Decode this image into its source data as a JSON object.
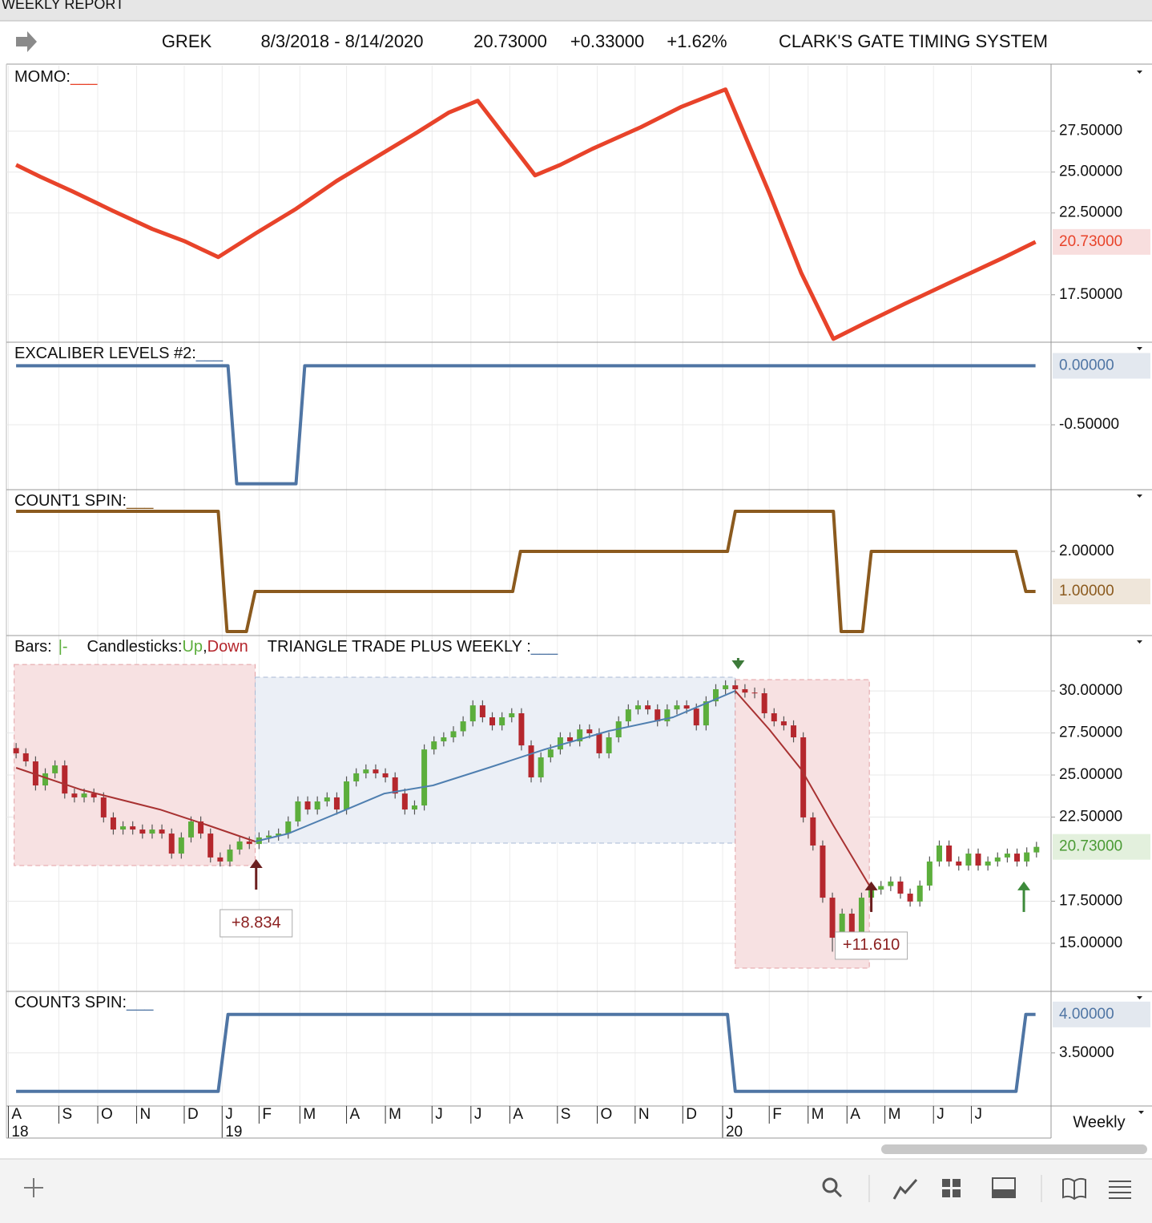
{
  "window_title": "WEEKLY REPORT",
  "header": {
    "symbol": "GREK",
    "range": "8/3/2018 - 8/14/2020",
    "last": "20.73000",
    "change": "+0.33000",
    "change_pct": "+1.62%",
    "system": "CLARK'S GATE TIMING SYSTEM"
  },
  "chart_data": [
    {
      "type": "line",
      "title": "MOMO:",
      "swatch": "___",
      "color": "#e8432a",
      "current_fill": "#f8dede",
      "xlim": [
        -1,
        106.5
      ],
      "ylim": [
        14.6,
        31.5
      ],
      "yticks": [
        {
          "value": 17.5,
          "label": "17.50000"
        },
        {
          "value": 22.5,
          "label": "22.50000"
        },
        {
          "value": 25,
          "label": "25.00000"
        },
        {
          "value": 27.5,
          "label": "27.50000"
        }
      ],
      "current": {
        "value": 20.73,
        "label": "20.73000"
      },
      "x": [
        0,
        2.5,
        5.8,
        9.9,
        14.0,
        17.3,
        20.8,
        24.7,
        28.8,
        33.0,
        37.1,
        41.2,
        44.5,
        47.5,
        53.4,
        56.0,
        59.3,
        64.3,
        68.4,
        71.7,
        73.0,
        77.5,
        80.8,
        84.1,
        87.4,
        91.5,
        96.4,
        101.4,
        104.9
      ],
      "values": [
        25.44,
        24.71,
        23.82,
        22.65,
        21.52,
        20.78,
        19.8,
        21.27,
        22.75,
        24.46,
        25.93,
        27.4,
        28.63,
        29.36,
        24.8,
        25.44,
        26.42,
        27.75,
        28.97,
        29.75,
        30.05,
        23.73,
        18.82,
        14.8,
        15.78,
        16.96,
        18.33,
        19.71,
        20.73
      ]
    },
    {
      "type": "line",
      "title": "EXCALIBER LEVELS #2:",
      "swatch": "___",
      "color": "#4f75a4",
      "current_fill": "#e3e8ef",
      "xlim": [
        -1,
        106.5
      ],
      "ylim": [
        -1.05,
        0.2
      ],
      "yticks": [
        {
          "value": -0.5,
          "label": "-0.50000"
        }
      ],
      "current": {
        "value": 0,
        "label": "0.00000"
      },
      "x": [
        0,
        21.8,
        22.7,
        28.8,
        29.7,
        104.9
      ],
      "values": [
        0,
        0,
        -1,
        -1,
        0,
        0
      ]
    },
    {
      "type": "line",
      "title": "COUNT1 SPIN:",
      "swatch": "___",
      "color": "#8b5a1e",
      "current_fill": "#efe6da",
      "xlim": [
        -1,
        106.5
      ],
      "ylim": [
        -0.1,
        3.54
      ],
      "yticks": [
        {
          "value": 2,
          "label": "2.00000"
        }
      ],
      "current": {
        "value": 1,
        "label": "1.00000"
      },
      "x": [
        0,
        20.8,
        21.7,
        23.7,
        24.6,
        51.1,
        51.9,
        73.2,
        74.0,
        84.1,
        84.9,
        87.1,
        88.0,
        102.9,
        103.9,
        104.9
      ],
      "values": [
        3,
        3,
        0,
        0,
        1,
        1,
        2,
        2,
        3,
        3,
        0,
        0,
        2,
        2,
        1,
        1
      ]
    },
    {
      "type": "candlestick",
      "xlim": [
        -1,
        106.5
      ],
      "ylim": [
        12.14,
        33.29
      ],
      "legend": {
        "bars": "Bars:",
        "bars_swatch": "|-",
        "candles": "Candlesticks:",
        "up": "Up",
        "sep": ",",
        "down": "Down",
        "study": "TRIANGLE TRADE PLUS WEEKLY :",
        "study_swatch": "___"
      },
      "up_color": "#5cae3c",
      "down_color": "#b5272d",
      "study_color": "#4f75a4",
      "current_fill": "#e3f0dd",
      "current_color": "#4a9a34",
      "yticks": [
        {
          "value": 15,
          "label": "15.00000"
        },
        {
          "value": 17.5,
          "label": "17.50000"
        },
        {
          "value": 22.5,
          "label": "22.50000"
        },
        {
          "value": 25,
          "label": "25.00000"
        },
        {
          "value": 27.5,
          "label": "27.50000"
        },
        {
          "value": 30,
          "label": "30.00000"
        }
      ],
      "current": {
        "value": 20.73,
        "label": "20.73000"
      },
      "zones": [
        {
          "x": [
            -0.2,
            24.6
          ],
          "y": [
            19.62,
            31.57
          ],
          "color": "#f7e1e2",
          "stroke": "#e3a0a4"
        },
        {
          "x": [
            24.6,
            74.0
          ],
          "y": [
            20.95,
            30.81
          ],
          "color": "#ebeff6",
          "stroke": "#a9b9d4"
        },
        {
          "x": [
            74.0,
            87.8
          ],
          "y": [
            13.52,
            30.67
          ],
          "color": "#f7e1e2",
          "stroke": "#e3a0a4"
        }
      ],
      "averages": [
        {
          "color": "#a83232",
          "x": [
            0,
            6.6,
            14.8,
            19.8,
            24.6
          ],
          "values": [
            25.43,
            24.14,
            22.95,
            22.0,
            21.05
          ]
        },
        {
          "color": "#4f7fb0",
          "x": [
            24.6,
            28.0,
            33.0,
            37.9,
            42.9,
            48.6,
            54.4,
            61.0,
            67.6,
            74.0
          ],
          "values": [
            21.05,
            21.52,
            22.71,
            23.9,
            24.38,
            25.43,
            26.52,
            27.62,
            28.43,
            30.0
          ]
        },
        {
          "color": "#a83232",
          "x": [
            74.0,
            77.5,
            80.8,
            84.1,
            87.8
          ],
          "values": [
            30.0,
            27.71,
            25.33,
            22.0,
            18.43
          ]
        }
      ],
      "annotations": [
        {
          "x": 24.7,
          "y": 20.0,
          "direction": "up",
          "color": "#6b1e1e",
          "label": "+8.834"
        },
        {
          "x": 88.0,
          "y": 18.67,
          "direction": "up",
          "color": "#6b1e1e",
          "label": "+11.610"
        },
        {
          "x": 103.7,
          "y": 18.67,
          "direction": "up",
          "color": "#3d8a3a"
        },
        {
          "x": 74.3,
          "y": 31.29,
          "direction": "down",
          "color": "#3d7a3a"
        }
      ],
      "ohlc": [
        [
          26.6,
          26.9,
          25.99,
          26.29
        ],
        [
          26.29,
          26.59,
          25.51,
          25.81
        ],
        [
          25.81,
          26.11,
          24.08,
          24.38
        ],
        [
          24.38,
          25.4,
          24.08,
          25.1
        ],
        [
          25.1,
          25.87,
          24.8,
          25.57
        ],
        [
          25.57,
          25.87,
          23.6,
          23.9
        ],
        [
          23.9,
          24.2,
          23.37,
          23.67
        ],
        [
          23.67,
          24.2,
          23.37,
          23.9
        ],
        [
          23.9,
          24.2,
          23.37,
          23.67
        ],
        [
          23.67,
          23.97,
          22.18,
          22.48
        ],
        [
          22.48,
          22.78,
          21.46,
          21.76
        ],
        [
          21.76,
          22.25,
          21.46,
          21.95
        ],
        [
          21.95,
          22.25,
          21.46,
          21.76
        ],
        [
          21.76,
          22.06,
          21.22,
          21.52
        ],
        [
          21.52,
          22.06,
          21.22,
          21.76
        ],
        [
          21.76,
          22.06,
          21.22,
          21.52
        ],
        [
          21.52,
          21.82,
          20.03,
          20.33
        ],
        [
          20.33,
          21.59,
          20.03,
          21.29
        ],
        [
          21.29,
          22.54,
          20.99,
          22.24
        ],
        [
          22.24,
          22.54,
          21.22,
          21.52
        ],
        [
          21.52,
          21.82,
          19.8,
          20.1
        ],
        [
          20.1,
          20.4,
          19.56,
          19.86
        ],
        [
          19.86,
          20.87,
          19.56,
          20.57
        ],
        [
          20.57,
          21.35,
          20.27,
          21.05
        ],
        [
          21.05,
          21.35,
          20.6,
          20.9
        ],
        [
          20.9,
          21.59,
          20.6,
          21.29
        ],
        [
          21.29,
          21.7,
          20.99,
          21.4
        ],
        [
          21.4,
          21.82,
          21.1,
          21.52
        ],
        [
          21.52,
          22.54,
          21.22,
          22.24
        ],
        [
          22.24,
          23.73,
          21.94,
          23.43
        ],
        [
          23.43,
          23.73,
          22.65,
          22.95
        ],
        [
          22.95,
          23.73,
          22.65,
          23.43
        ],
        [
          23.43,
          23.97,
          23.13,
          23.67
        ],
        [
          23.67,
          23.97,
          22.65,
          22.95
        ],
        [
          22.95,
          24.92,
          22.65,
          24.62
        ],
        [
          24.62,
          25.4,
          24.32,
          25.1
        ],
        [
          25.1,
          25.63,
          24.8,
          25.33
        ],
        [
          25.33,
          25.63,
          24.8,
          25.1
        ],
        [
          25.1,
          25.4,
          24.56,
          24.86
        ],
        [
          24.86,
          25.16,
          23.6,
          23.9
        ],
        [
          23.9,
          24.2,
          22.65,
          22.95
        ],
        [
          22.95,
          23.49,
          22.65,
          23.19
        ],
        [
          23.19,
          26.82,
          22.89,
          26.52
        ],
        [
          26.52,
          27.3,
          26.22,
          27.0
        ],
        [
          27.0,
          27.54,
          26.7,
          27.24
        ],
        [
          27.24,
          27.9,
          26.94,
          27.6
        ],
        [
          27.6,
          28.49,
          27.3,
          28.19
        ],
        [
          28.19,
          29.44,
          27.89,
          29.14
        ],
        [
          29.14,
          29.44,
          28.13,
          28.43
        ],
        [
          28.43,
          28.73,
          27.65,
          27.95
        ],
        [
          27.95,
          28.73,
          27.65,
          28.43
        ],
        [
          28.43,
          28.97,
          28.13,
          28.67
        ],
        [
          28.67,
          28.97,
          26.46,
          26.76
        ],
        [
          26.76,
          27.06,
          24.56,
          24.86
        ],
        [
          24.86,
          26.35,
          24.56,
          26.05
        ],
        [
          26.05,
          26.82,
          25.75,
          26.52
        ],
        [
          26.52,
          27.54,
          26.22,
          27.24
        ],
        [
          27.24,
          27.54,
          26.7,
          27.0
        ],
        [
          27.0,
          28.01,
          26.7,
          27.71
        ],
        [
          27.71,
          28.01,
          27.18,
          27.48
        ],
        [
          27.48,
          27.78,
          25.99,
          26.29
        ],
        [
          26.29,
          27.54,
          25.99,
          27.24
        ],
        [
          27.24,
          28.49,
          26.94,
          28.19
        ],
        [
          28.19,
          29.2,
          27.89,
          28.9
        ],
        [
          28.9,
          29.44,
          28.6,
          29.14
        ],
        [
          29.14,
          29.44,
          28.6,
          28.9
        ],
        [
          28.9,
          29.2,
          27.89,
          28.19
        ],
        [
          28.19,
          29.2,
          27.89,
          28.9
        ],
        [
          28.9,
          29.44,
          28.6,
          29.14
        ],
        [
          29.14,
          29.44,
          28.65,
          28.95
        ],
        [
          28.95,
          29.25,
          27.65,
          27.95
        ],
        [
          27.95,
          29.68,
          27.65,
          29.38
        ],
        [
          29.38,
          30.4,
          29.08,
          30.1
        ],
        [
          30.1,
          30.63,
          29.8,
          30.33
        ],
        [
          30.33,
          30.63,
          29.8,
          30.1
        ],
        [
          30.1,
          30.4,
          29.6,
          29.9
        ],
        [
          29.9,
          30.2,
          29.56,
          29.86
        ],
        [
          29.86,
          30.16,
          28.37,
          28.67
        ],
        [
          28.67,
          28.97,
          27.89,
          28.19
        ],
        [
          28.19,
          28.49,
          27.65,
          27.95
        ],
        [
          27.95,
          28.25,
          26.94,
          27.24
        ],
        [
          27.24,
          27.54,
          22.18,
          22.48
        ],
        [
          22.48,
          22.78,
          20.51,
          20.81
        ],
        [
          20.81,
          21.11,
          17.41,
          17.71
        ],
        [
          17.71,
          18.01,
          14.5,
          15.33
        ],
        [
          15.33,
          17.06,
          15.03,
          16.76
        ],
        [
          16.76,
          17.06,
          15.27,
          15.57
        ],
        [
          15.57,
          18.01,
          15.27,
          17.71
        ],
        [
          17.71,
          18.49,
          17.41,
          18.19
        ],
        [
          18.19,
          18.7,
          17.89,
          18.4
        ],
        [
          18.4,
          18.97,
          18.1,
          18.67
        ],
        [
          18.67,
          18.97,
          17.65,
          17.95
        ],
        [
          17.95,
          18.25,
          17.18,
          17.48
        ],
        [
          17.48,
          18.73,
          17.18,
          18.43
        ],
        [
          18.43,
          20.16,
          18.13,
          19.86
        ],
        [
          19.86,
          21.11,
          19.56,
          20.81
        ],
        [
          20.81,
          21.11,
          19.56,
          19.86
        ],
        [
          19.86,
          20.16,
          19.32,
          19.62
        ],
        [
          19.62,
          20.63,
          19.32,
          20.33
        ],
        [
          20.33,
          20.63,
          19.32,
          19.62
        ],
        [
          19.62,
          20.16,
          19.32,
          19.86
        ],
        [
          19.86,
          20.4,
          19.56,
          20.1
        ],
        [
          20.1,
          20.63,
          19.8,
          20.33
        ],
        [
          20.33,
          20.63,
          19.56,
          19.86
        ],
        [
          19.86,
          20.7,
          19.56,
          20.4
        ],
        [
          20.4,
          21.03,
          20.1,
          20.73
        ]
      ]
    },
    {
      "type": "line",
      "title": "COUNT3 SPIN:",
      "swatch": "___",
      "color": "#4f75a4",
      "current_fill": "#e3e8ef",
      "xlim": [
        -1,
        106.5
      ],
      "ylim": [
        2.81,
        4.3
      ],
      "yticks": [
        {
          "value": 3.5,
          "label": "3.50000"
        }
      ],
      "current": {
        "value": 4,
        "label": "4.00000"
      },
      "x": [
        0,
        20.8,
        21.8,
        73.2,
        74.0,
        102.9,
        103.9,
        104.9
      ],
      "values": [
        3,
        3,
        4,
        4,
        3,
        3,
        4,
        4
      ],
      "xticks": [
        {
          "value": -0.8,
          "label": "A"
        },
        {
          "value": 4.4,
          "label": "S"
        },
        {
          "value": 8.4,
          "label": "O"
        },
        {
          "value": 12.4,
          "label": "N"
        },
        {
          "value": 17.3,
          "label": "D"
        },
        {
          "value": 21.2,
          "label": "J"
        },
        {
          "value": 25.0,
          "label": "F"
        },
        {
          "value": 29.2,
          "label": "M"
        },
        {
          "value": 34.0,
          "label": "A"
        },
        {
          "value": 38.0,
          "label": "M"
        },
        {
          "value": 42.8,
          "label": "J"
        },
        {
          "value": 46.8,
          "label": "J"
        },
        {
          "value": 50.8,
          "label": "A"
        },
        {
          "value": 55.7,
          "label": "S"
        },
        {
          "value": 59.8,
          "label": "O"
        },
        {
          "value": 63.7,
          "label": "N"
        },
        {
          "value": 68.6,
          "label": "D"
        },
        {
          "value": 72.7,
          "label": "J"
        },
        {
          "value": 77.5,
          "label": "F"
        },
        {
          "value": 81.5,
          "label": "M"
        },
        {
          "value": 85.5,
          "label": "A"
        },
        {
          "value": 89.4,
          "label": "M"
        },
        {
          "value": 94.4,
          "label": "J"
        },
        {
          "value": 98.3,
          "label": "J"
        }
      ],
      "year_ticks": [
        {
          "value": -0.8,
          "label": "18"
        },
        {
          "value": 21.2,
          "label": "19"
        },
        {
          "value": 72.7,
          "label": "20"
        }
      ],
      "period": "Weekly"
    }
  ]
}
